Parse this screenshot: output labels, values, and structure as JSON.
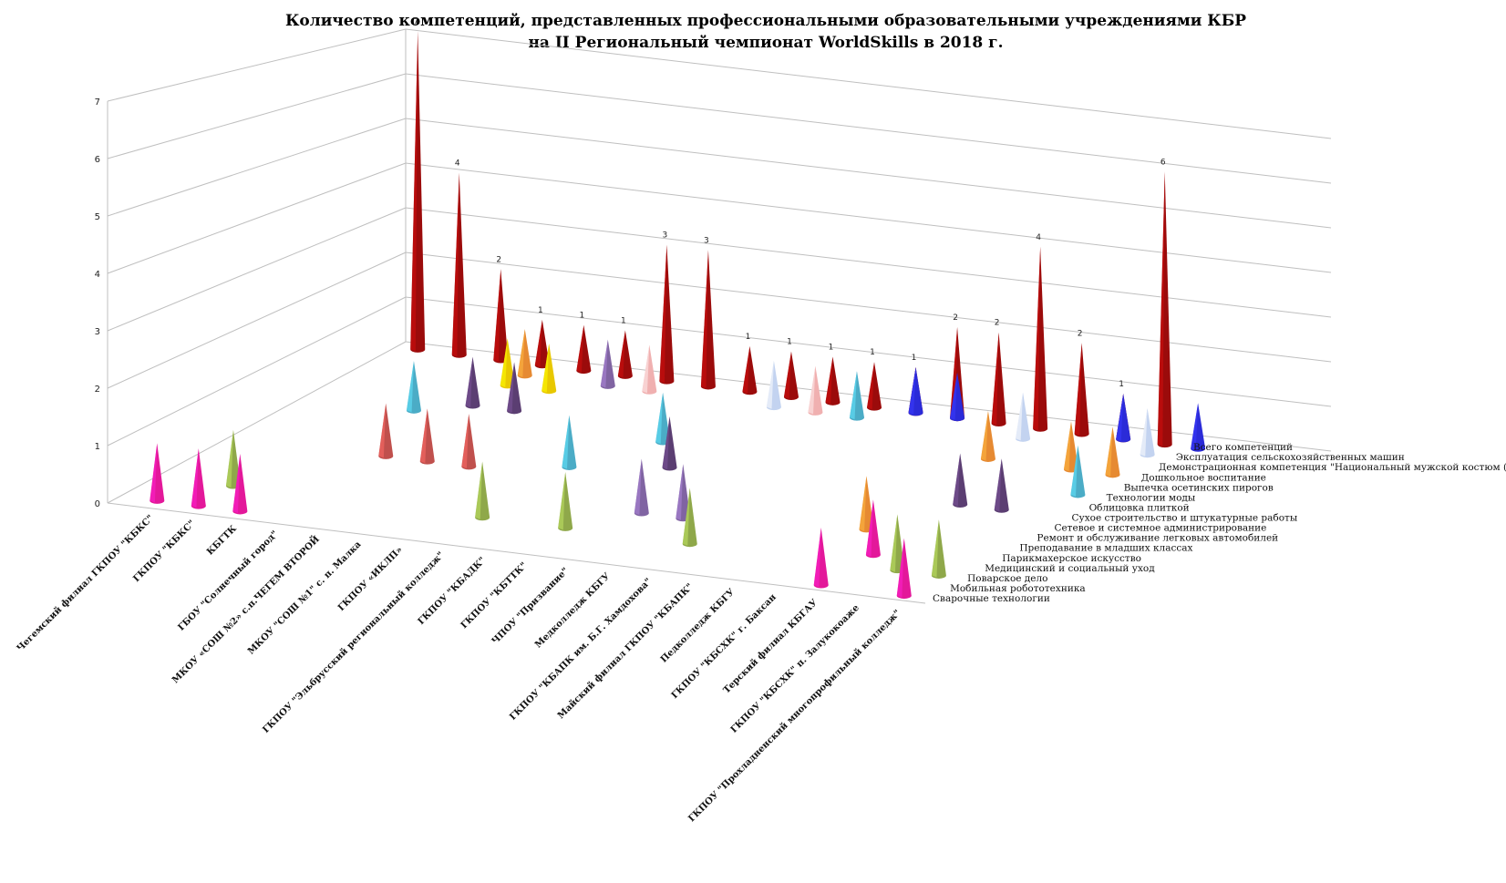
{
  "chart_data": {
    "type": "bar",
    "shape": "3d-cone",
    "title_line1": "Количество компетенций, представленных профессиональными образовательными учреждениями КБР",
    "title_line2": "на II Региональный чемпионат WorldSkills в 2018 г.",
    "ylim": [
      0,
      7
    ],
    "yticks": [
      "0",
      "1",
      "2",
      "3",
      "4",
      "5",
      "6",
      "7"
    ],
    "grid": true,
    "categories": [
      "Чегемский филиал ГКПОУ \"КБКС\"",
      "ГКПОУ \"КБКС\"",
      "КБГТК",
      "ГБОУ \"Солнечный город\"",
      "МКОУ «СОШ №2» с.п.ЧЕГЕМ ВТОРОЙ",
      "МКОУ \"СОШ №1\" с. п. Малка",
      "ГКПОУ «ИКЛП»",
      "ГКПОУ \"Эльбрусский региональный колледж\"",
      "ГКПОУ \"КБАДК\"",
      "ГКПОУ \"КБТТК\"",
      "ЧПОУ \"Призвание\"",
      "Медколледж КБГУ",
      "ГКПОУ \"КБАПК им. Б.Г. Хамдохова\"",
      "Майский филиал ГКПОУ \"КБАПК\"",
      "Педколледж КБГУ",
      "ГКПОУ \"КБСХК\" г. Баксан",
      "Терский филиал КБГАУ",
      "ГКПОУ \"КБСХК\" п. Залукокоаже",
      "ГКПОУ \"Прохладненский многопрофильный колледж\""
    ],
    "series": [
      {
        "name": "Сварочные технологии",
        "color": "#e3189a",
        "values": [
          1,
          1,
          1,
          0,
          0,
          0,
          0,
          0,
          0,
          0,
          0,
          0,
          0,
          0,
          0,
          0,
          1,
          0,
          1
        ]
      },
      {
        "name": "Мобильная робототехника",
        "color": "#8fa84a",
        "values": [
          0,
          0,
          0,
          0,
          0,
          0,
          0,
          0,
          0,
          0,
          0,
          0,
          0,
          0,
          0,
          0,
          0,
          0,
          0
        ]
      },
      {
        "name": "Поварское дело",
        "color": "#8fa84a",
        "values": [
          0,
          1,
          0,
          0,
          0,
          0,
          0,
          1,
          0,
          1,
          0,
          0,
          1,
          0,
          0,
          0,
          0,
          1,
          1
        ]
      },
      {
        "name": "Медицинский и социальный уход",
        "color": "#e3189a",
        "values": [
          0,
          0,
          0,
          0,
          0,
          0,
          0,
          0,
          0,
          0,
          0,
          0,
          0,
          0,
          0,
          0,
          1,
          0,
          0
        ]
      },
      {
        "name": "Парикмахерское искусство",
        "color": "#8064a2",
        "values": [
          0,
          0,
          0,
          0,
          0,
          0,
          0,
          0,
          0,
          0,
          1,
          1,
          0,
          0,
          0,
          0,
          0,
          0,
          0
        ]
      },
      {
        "name": "Преподавание в младших классах",
        "color": "#e68a32",
        "values": [
          0,
          0,
          0,
          0,
          0,
          0,
          0,
          0,
          0,
          0,
          0,
          0,
          0,
          0,
          0,
          1,
          0,
          0,
          0
        ]
      },
      {
        "name": "Ремонт и обслуживание легковых автомобилей",
        "color": "#c0504d",
        "values": [
          0,
          0,
          0,
          1,
          1,
          1,
          0,
          0,
          0,
          0,
          0,
          0,
          0,
          0,
          0,
          0,
          0,
          0,
          0
        ]
      },
      {
        "name": "Сетевое и системное администрирование",
        "color": "#4bacc6",
        "values": [
          0,
          0,
          0,
          0,
          0,
          0,
          0,
          1,
          0,
          0,
          0,
          0,
          0,
          0,
          0,
          0,
          0,
          0,
          0
        ]
      },
      {
        "name": "Сухое строительство и штукатурные работы",
        "color": "#5b3e72",
        "values": [
          0,
          0,
          0,
          0,
          0,
          0,
          0,
          0,
          0,
          1,
          0,
          0,
          0,
          0,
          0,
          0,
          1,
          1,
          0
        ]
      },
      {
        "name": "Облицовка плиткой",
        "color": "#5b3e72",
        "values": [
          0,
          0,
          0,
          0,
          0,
          0,
          0,
          0,
          0,
          0,
          0,
          0,
          0,
          0,
          0,
          0,
          0,
          0,
          0
        ]
      },
      {
        "name": "Технологии моды",
        "color": "#4bacc6",
        "values": [
          0,
          0,
          1,
          0,
          0,
          0,
          0,
          0,
          1,
          0,
          0,
          0,
          0,
          0,
          0,
          0,
          0,
          0,
          1
        ]
      },
      {
        "name": "Выпечка осетинских пирогов",
        "color": "#5b3e72",
        "values": [
          0,
          0,
          0,
          1,
          1,
          0,
          0,
          0,
          0,
          0,
          0,
          0,
          0,
          0,
          0,
          0,
          0,
          0,
          0
        ]
      },
      {
        "name": "Дошкольное воспитание",
        "color": "#e68a32",
        "values": [
          0,
          0,
          0,
          0,
          0,
          0,
          0,
          0,
          0,
          0,
          0,
          0,
          0,
          0,
          0,
          1,
          0,
          1,
          1
        ]
      },
      {
        "name": "Демонстрационная компетенция \"Национальный мужской костюм (Черкеса)\"",
        "color": "#e8c800",
        "values": [
          0,
          0,
          0,
          1,
          1,
          0,
          0,
          0,
          0,
          0,
          0,
          0,
          0,
          0,
          0,
          0,
          0,
          0,
          0
        ]
      },
      {
        "name": "Эксплуатация сельскохозяйственных машин",
        "color": "#c3d3f0",
        "values": [
          0,
          0,
          0,
          0,
          0,
          0,
          0,
          0,
          0,
          1,
          0,
          0,
          0,
          0,
          0,
          1,
          0,
          0,
          1
        ]
      },
      {
        "name": "Всего компетенций",
        "color": "#9b0b0b",
        "values": [
          7,
          4,
          2,
          1,
          1,
          1,
          3,
          3,
          1,
          1,
          1,
          1,
          1,
          2,
          2,
          4,
          2,
          1,
          6
        ]
      }
    ],
    "extra_cones": [
      {
        "category_index": 3,
        "row": 14,
        "color": "#e68a32",
        "value": 1
      },
      {
        "category_index": 5,
        "row": 14,
        "color": "#8064a2",
        "value": 1
      },
      {
        "category_index": 6,
        "row": 14,
        "color": "#f0b0b0",
        "value": 1
      },
      {
        "category_index": 10,
        "row": 14,
        "color": "#f0b0b0",
        "value": 1
      },
      {
        "category_index": 11,
        "row": 14,
        "color": "#c3d3f0",
        "value": 1
      },
      {
        "category_index": 11,
        "row": 14,
        "color": "#4bacc6",
        "value": 1
      },
      {
        "category_index": 12,
        "row": 15,
        "color": "#2b2bd8",
        "value": 1
      },
      {
        "category_index": 13,
        "row": 15,
        "color": "#2b2bd8",
        "value": 1
      },
      {
        "category_index": 17,
        "row": 15,
        "color": "#2b2bd8",
        "value": 1
      },
      {
        "category_index": 19,
        "row": 15,
        "color": "#2b2bd8",
        "value": 1
      }
    ],
    "data_labels_series": "Всего компетенций",
    "legend": "right-depth-axis"
  }
}
